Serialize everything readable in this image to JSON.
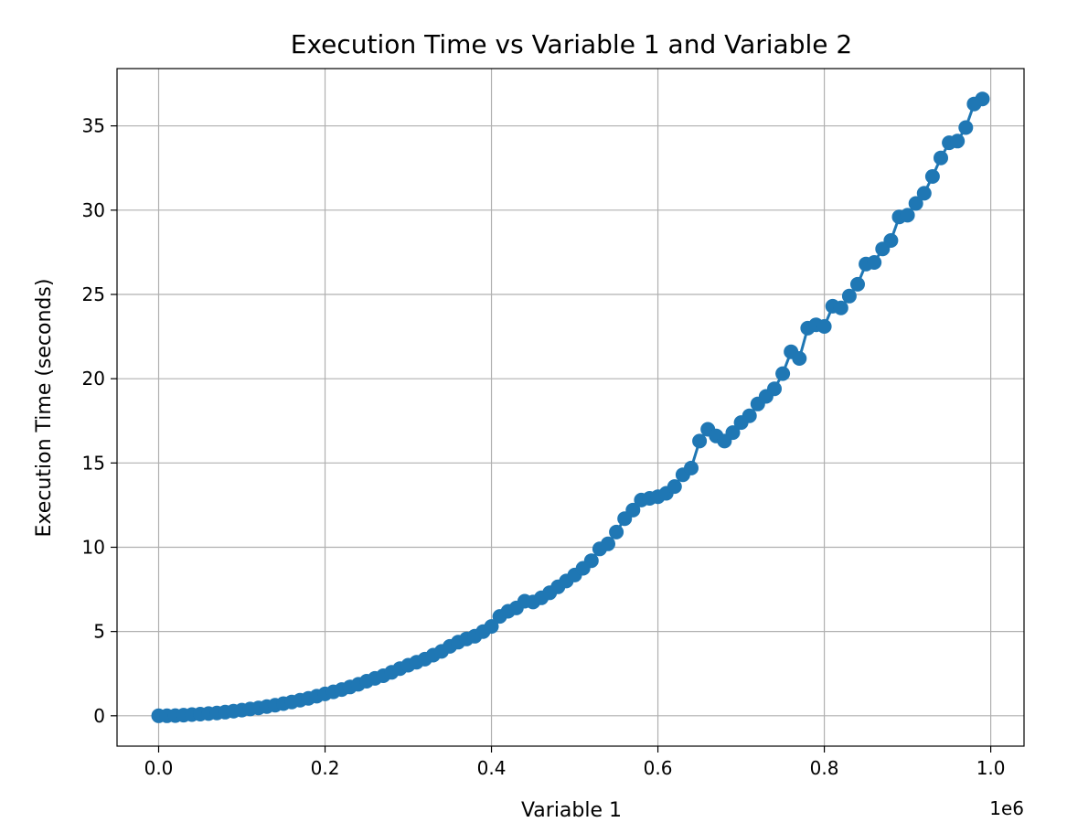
{
  "chart_data": {
    "type": "line",
    "title": "Execution Time vs Variable 1 and Variable 2",
    "xlabel": "Variable 1",
    "ylabel": "Execution Time (seconds)",
    "x_offset_label": "1e6",
    "xlim": [
      -50000,
      1040000
    ],
    "ylim": [
      -1.8,
      38.4
    ],
    "x_ticks": [
      0,
      200000,
      400000,
      600000,
      800000,
      1000000
    ],
    "x_tick_labels": [
      "0.0",
      "0.2",
      "0.4",
      "0.6",
      "0.8",
      "1.0"
    ],
    "y_ticks": [
      0,
      5,
      10,
      15,
      20,
      25,
      30,
      35
    ],
    "y_tick_labels": [
      "0",
      "5",
      "10",
      "15",
      "20",
      "25",
      "30",
      "35"
    ],
    "grid": true,
    "series": [
      {
        "color": "#1f77b4",
        "marker": "circle",
        "x": [
          0,
          10000,
          20000,
          30000,
          40000,
          50000,
          60000,
          70000,
          80000,
          90000,
          100000,
          110000,
          120000,
          130000,
          140000,
          150000,
          160000,
          170000,
          180000,
          190000,
          200000,
          210000,
          220000,
          230000,
          240000,
          250000,
          260000,
          270000,
          280000,
          290000,
          300000,
          310000,
          320000,
          330000,
          340000,
          350000,
          360000,
          370000,
          380000,
          390000,
          400000,
          410000,
          420000,
          430000,
          440000,
          450000,
          460000,
          470000,
          480000,
          490000,
          500000,
          510000,
          520000,
          530000,
          540000,
          550000,
          560000,
          570000,
          580000,
          590000,
          600000,
          610000,
          620000,
          630000,
          640000,
          650000,
          660000,
          670000,
          680000,
          690000,
          700000,
          710000,
          720000,
          730000,
          740000,
          750000,
          760000,
          770000,
          780000,
          790000,
          800000,
          810000,
          820000,
          830000,
          840000,
          850000,
          860000,
          870000,
          880000,
          890000,
          900000,
          910000,
          920000,
          930000,
          940000,
          950000,
          960000,
          970000,
          980000,
          990000
        ],
        "y": [
          0,
          0,
          0.01,
          0.04,
          0.07,
          0.1,
          0.13,
          0.17,
          0.22,
          0.28,
          0.34,
          0.4,
          0.47,
          0.55,
          0.63,
          0.72,
          0.82,
          0.93,
          1.04,
          1.16,
          1.3,
          1.42,
          1.56,
          1.71,
          1.87,
          2.05,
          2.22,
          2.38,
          2.58,
          2.8,
          3.0,
          3.18,
          3.36,
          3.6,
          3.82,
          4.12,
          4.37,
          4.56,
          4.72,
          5.0,
          5.3,
          5.9,
          6.2,
          6.4,
          6.8,
          6.75,
          7.0,
          7.3,
          7.65,
          8.0,
          8.35,
          8.75,
          9.2,
          9.9,
          10.2,
          10.9,
          11.7,
          12.2,
          12.8,
          12.9,
          13.0,
          13.2,
          13.6,
          14.3,
          14.7,
          16.3,
          17.0,
          16.6,
          16.3,
          16.8,
          17.4,
          17.8,
          18.5,
          18.95,
          19.4,
          20.3,
          21.6,
          21.2,
          23.0,
          23.2,
          23.1,
          24.3,
          24.2,
          24.9,
          25.6,
          26.8,
          26.9,
          27.7,
          28.2,
          29.6,
          29.7,
          30.4,
          31.0,
          32.0,
          33.1,
          34.0,
          34.1,
          34.9,
          36.3,
          36.6
        ]
      }
    ]
  }
}
